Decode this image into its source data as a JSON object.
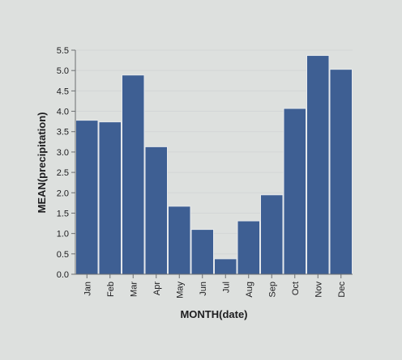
{
  "chart_data": {
    "type": "bar",
    "title": "",
    "xlabel": "MONTH(date)",
    "ylabel": "MEAN(precipitation)",
    "categories": [
      "Jan",
      "Feb",
      "Mar",
      "Apr",
      "May",
      "Jun",
      "Jul",
      "Aug",
      "Sep",
      "Oct",
      "Nov",
      "Dec"
    ],
    "values": [
      3.78,
      3.74,
      4.89,
      3.13,
      1.67,
      1.1,
      0.38,
      1.31,
      1.95,
      4.07,
      5.37,
      5.03
    ],
    "ylim": [
      0,
      5.5
    ],
    "yticks": [
      "0.0",
      "0.5",
      "1.0",
      "1.5",
      "2.0",
      "2.5",
      "3.0",
      "3.5",
      "4.0",
      "4.5",
      "5.0",
      "5.5"
    ],
    "grid": true,
    "colors": {
      "bar": "#3e5f93",
      "bar_stroke": "#e6e9ec",
      "grid": "#d3d6d6",
      "axis": "#6b6e70",
      "text": "#1d1d1f",
      "background": "#dde0de"
    }
  }
}
